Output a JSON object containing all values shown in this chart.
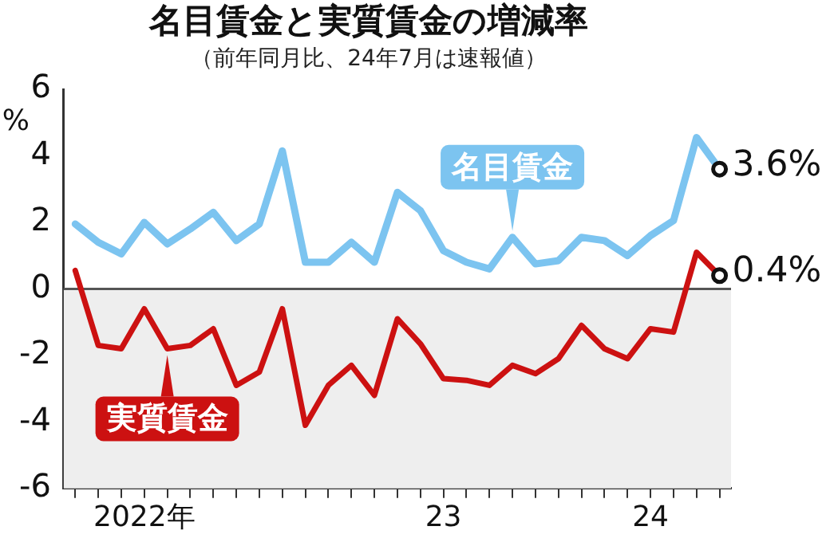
{
  "chart_data": {
    "type": "line",
    "title": "名目賃金と実質賃金の増減率",
    "subtitle": "（前年同月比、24年7月は速報値）",
    "ylabel": "%",
    "categories": [
      null,
      null,
      null,
      "2022年",
      null,
      null,
      null,
      null,
      null,
      null,
      null,
      null,
      null,
      null,
      null,
      null,
      "23",
      null,
      null,
      null,
      null,
      null,
      null,
      null,
      null,
      "24",
      null,
      null,
      null
    ],
    "series": [
      {
        "name": "名目賃金",
        "color": "#7cc4f0",
        "values": [
          1.95,
          1.4,
          1.05,
          2.0,
          1.35,
          1.8,
          2.3,
          1.45,
          1.95,
          4.15,
          0.8,
          0.8,
          1.4,
          0.8,
          2.9,
          2.35,
          1.15,
          0.8,
          0.6,
          1.55,
          0.75,
          0.85,
          1.55,
          1.45,
          1.0,
          1.6,
          2.05,
          4.55,
          3.6
        ],
        "value_labels": [
          null,
          null,
          null,
          null,
          null,
          null,
          null,
          null,
          null,
          null,
          null,
          null,
          null,
          null,
          null,
          null,
          null,
          null,
          null,
          null,
          null,
          null,
          null,
          null,
          null,
          null,
          null,
          null,
          "3.6%"
        ]
      },
      {
        "name": "実質賃金",
        "color": "#cc1111",
        "values": [
          0.55,
          -1.7,
          -1.8,
          -0.6,
          -1.8,
          -1.7,
          -1.2,
          -2.9,
          -2.5,
          -0.6,
          -4.1,
          -2.9,
          -2.3,
          -3.2,
          -0.9,
          -1.65,
          -2.7,
          -2.75,
          -2.9,
          -2.3,
          -2.55,
          -2.1,
          -1.1,
          -1.8,
          -2.1,
          -1.2,
          -1.3,
          1.1,
          0.4
        ],
        "value_labels": [
          null,
          null,
          null,
          null,
          null,
          null,
          null,
          null,
          null,
          null,
          null,
          null,
          null,
          null,
          null,
          null,
          null,
          null,
          null,
          null,
          null,
          null,
          null,
          null,
          null,
          null,
          null,
          null,
          "0.4%"
        ]
      }
    ],
    "ylim": [
      -6,
      6
    ],
    "yticks": [
      -6,
      -4,
      -2,
      0,
      2,
      4,
      6
    ],
    "grid": false,
    "ref_lines": [
      {
        "axis": "y",
        "value": 0,
        "color": "#555555"
      }
    ],
    "bands": [
      {
        "axis": "y",
        "from": -6,
        "to": 0,
        "color": "#eeeeee"
      }
    ]
  }
}
